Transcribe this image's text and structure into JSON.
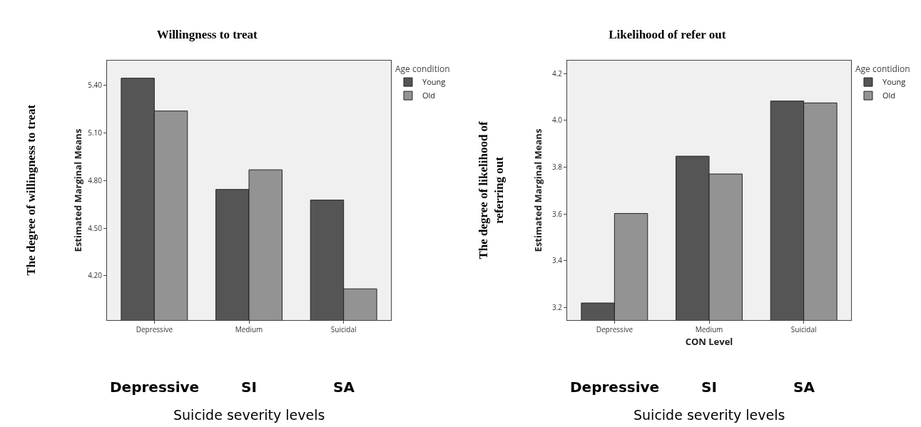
{
  "chart_data": [
    {
      "type": "bar",
      "title": "Willingness to treat",
      "ylabel": "Estimated Marginal Means",
      "categories": [
        "Depressive",
        "Medium",
        "Suicidal"
      ],
      "legend_title": "Age condition",
      "legend": "top right",
      "series": [
        {
          "name": "Young",
          "color": "#555555",
          "values": [
            5.446,
            4.744,
            4.677
          ]
        },
        {
          "name": "Old",
          "color": "#939393",
          "values": [
            5.239,
            4.868,
            4.117
          ]
        }
      ],
      "ylim": [
        3.92,
        5.557
      ],
      "yticks": [
        {
          "value": 4.2,
          "label": "4.20"
        },
        {
          "value": 4.5,
          "label": "4.50"
        },
        {
          "value": 4.8,
          "label": "4.80"
        },
        {
          "value": 5.1,
          "label": "5.10"
        },
        {
          "value": 5.4,
          "label": "5.40"
        }
      ],
      "annotations": [
        "The degree of willingness to treat",
        "Depressive",
        "SI",
        "SA",
        "Suicide severity levels"
      ]
    },
    {
      "type": "bar",
      "title": "Likelihood of refer out",
      "ylabel": "Estimated Marginal Means",
      "xlabel": "CON Level",
      "categories": [
        "Depressive",
        "Medium",
        "Suicidal"
      ],
      "legend_title": "Age contidion",
      "legend": "top right",
      "series": [
        {
          "name": "Young",
          "color": "#555555",
          "values": [
            3.219,
            3.847,
            4.083
          ]
        },
        {
          "name": "Old",
          "color": "#939393",
          "values": [
            3.602,
            3.771,
            4.075
          ]
        }
      ],
      "ylim": [
        3.146,
        4.256
      ],
      "yticks": [
        3.2,
        3.4,
        3.6,
        3.8,
        {
          "value": 4,
          "label": "4.0"
        },
        4.2
      ],
      "annotations": [
        "The degree of likelihood of\nreferring out",
        "Depressive",
        "SI",
        "SA",
        "Suicide severity levels"
      ]
    }
  ]
}
